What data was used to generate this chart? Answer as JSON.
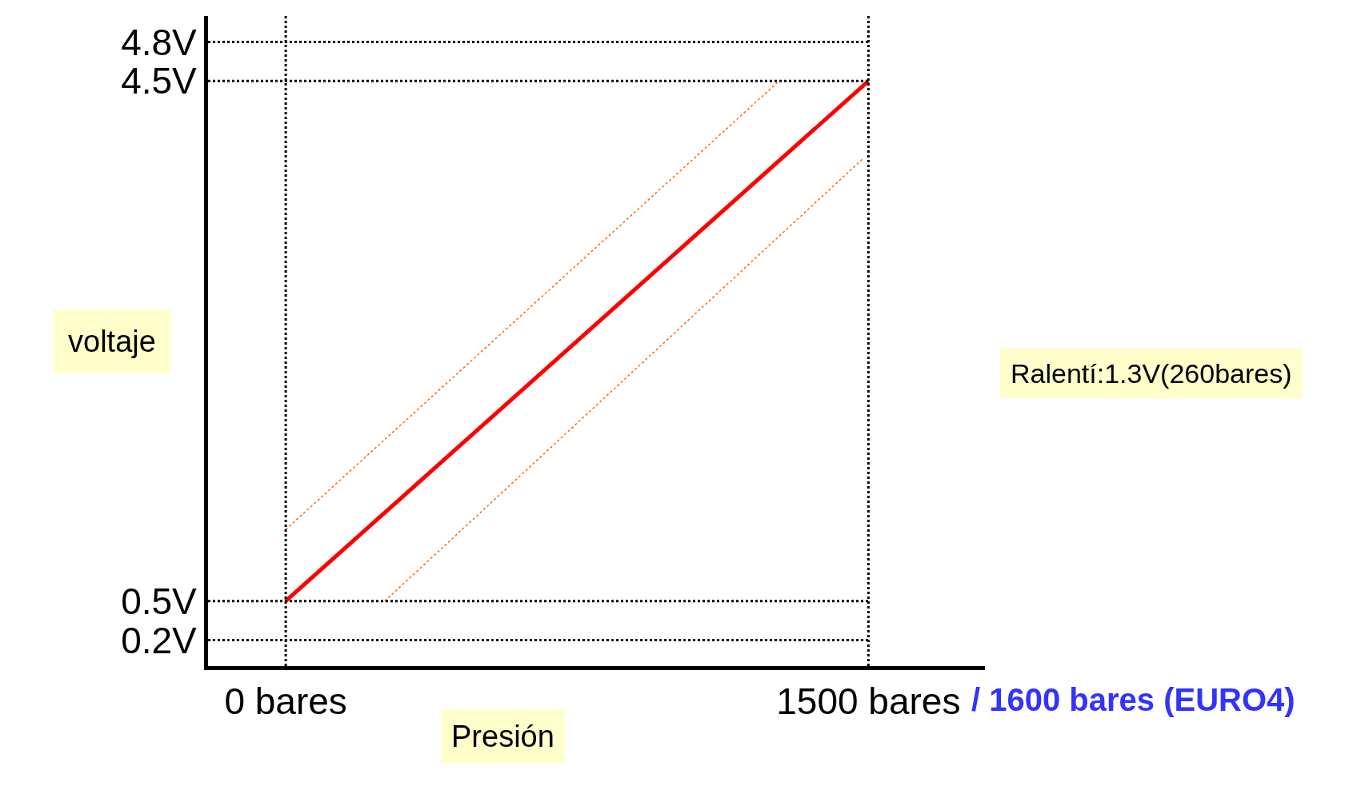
{
  "chart_data": {
    "type": "line",
    "xlabel": "Presión",
    "ylabel": "voltaje",
    "xlim": [
      -200,
      1800
    ],
    "ylim": [
      0,
      5
    ],
    "xticks": [
      {
        "value": 0,
        "label": "0 bares"
      },
      {
        "value": 1500,
        "label": "1500 bares"
      }
    ],
    "yticks": [
      {
        "value": 0.2,
        "label": "0.2V"
      },
      {
        "value": 0.5,
        "label": "0.5V"
      },
      {
        "value": 4.5,
        "label": "4.5V"
      },
      {
        "value": 4.8,
        "label": "4.8V"
      }
    ],
    "grid": true,
    "series": [
      {
        "color": "#ff0000",
        "x": [
          0,
          1500
        ],
        "values": [
          0.5,
          4.5
        ],
        "line_style": "solid"
      },
      {
        "color": "#ff6600",
        "x": [
          0,
          1270
        ],
        "values": [
          1.05,
          4.5
        ],
        "line_style": "dotted"
      },
      {
        "color": "#ff6600",
        "x": [
          255,
          1485
        ],
        "values": [
          0.5,
          3.9
        ],
        "line_style": "dotted"
      }
    ],
    "annotations": [
      "/ 1600 bares (EURO4)",
      "Ralentí:1.3V(260bares)"
    ]
  }
}
